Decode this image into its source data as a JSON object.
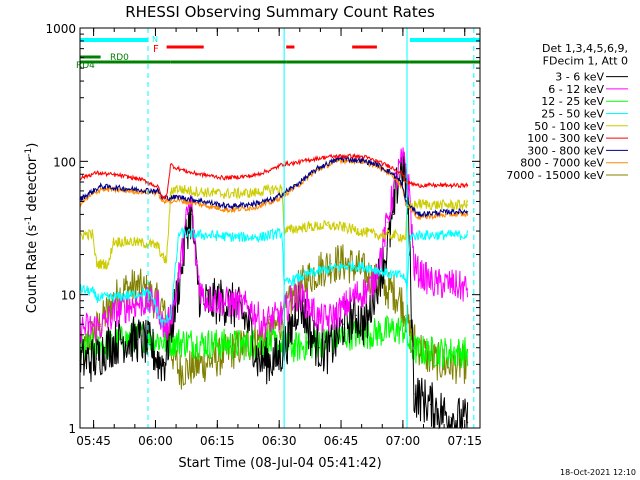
{
  "chart_data": {
    "type": "line",
    "title": "RHESSI Observing Summary Count Rates",
    "xlabel": "Start Time (08-Jul-04 05:41:42)",
    "ylabel_parts": [
      "Count Rate (s",
      "-1",
      " detector",
      "-1",
      ")"
    ],
    "x_unit": "minutes after 05:41:42",
    "xlim": [
      0,
      97
    ],
    "ylim": [
      1,
      1000
    ],
    "yscale": "log",
    "grid": false,
    "legend_position": "right",
    "x_ticks": [
      {
        "x": 3.3,
        "label": "05:45"
      },
      {
        "x": 18.3,
        "label": "06:00"
      },
      {
        "x": 33.3,
        "label": "06:15"
      },
      {
        "x": 48.3,
        "label": "06:30"
      },
      {
        "x": 63.3,
        "label": "06:45"
      },
      {
        "x": 78.3,
        "label": "07:00"
      },
      {
        "x": 93.3,
        "label": "07:15"
      }
    ],
    "y_ticks": [
      {
        "y": 1,
        "label": "1"
      },
      {
        "y": 10,
        "label": "10"
      },
      {
        "y": 100,
        "label": "100"
      },
      {
        "y": 1000,
        "label": "1000"
      }
    ],
    "legend_header": [
      "Det 1,3,4,5,6,9,",
      "FDecim 1, Att 0"
    ],
    "series": [
      {
        "name": "3 - 6 keV",
        "color": "#000000",
        "x": [
          0,
          4,
          6,
          10,
          14,
          17,
          19,
          20.5,
          21.5,
          23,
          24.5,
          26,
          27,
          28,
          29,
          30,
          34,
          38,
          41,
          43,
          44,
          46,
          48,
          51,
          53,
          54,
          56,
          58,
          60,
          62,
          64,
          67,
          69,
          70,
          71,
          73,
          74.5,
          76,
          77,
          78,
          79,
          79.5,
          80,
          81,
          85,
          88,
          90,
          94
        ],
        "y": [
          3.2,
          3.3,
          4.0,
          4.6,
          4.6,
          4.2,
          3.2,
          3.1,
          4.5,
          8,
          15,
          32,
          40,
          18,
          10,
          8.5,
          9,
          8,
          6,
          3.3,
          3.2,
          3.2,
          3.3,
          5,
          9,
          8,
          5,
          4,
          3.8,
          4.5,
          6,
          7,
          6,
          6.5,
          10,
          15,
          22,
          40,
          70,
          95,
          70,
          45,
          20,
          1.8,
          1.5,
          1.3,
          1.2,
          1.1
        ]
      },
      {
        "name": "6 - 12 keV",
        "color": "#ff00ff",
        "x": [
          0,
          5,
          9,
          13,
          16,
          19,
          20,
          21,
          23,
          24.5,
          26,
          27,
          28,
          29,
          30,
          34,
          38,
          41,
          43,
          44,
          46,
          49,
          51,
          53,
          56,
          58,
          60,
          62,
          64,
          67,
          69,
          71,
          73,
          74.5,
          76,
          77,
          78,
          79,
          80,
          81,
          83,
          86,
          90,
          94
        ],
        "y": [
          5.6,
          5.8,
          7.5,
          8.5,
          8.8,
          8.5,
          6,
          5.5,
          9,
          18,
          40,
          50,
          20,
          12,
          9.5,
          9,
          8.5,
          8,
          7,
          6,
          6.5,
          7,
          9,
          10,
          8,
          6.5,
          6.5,
          7,
          8,
          10,
          10.5,
          12,
          20,
          35,
          60,
          80,
          100,
          95,
          55,
          16,
          14,
          12,
          12,
          11
        ]
      },
      {
        "name": "12 - 25 keV",
        "color": "#00ff00",
        "x": [
          0,
          8,
          15,
          20,
          25,
          30,
          40,
          45,
          52,
          60,
          65,
          70,
          76,
          79,
          80,
          82,
          87,
          94
        ],
        "y": [
          3.9,
          4.3,
          4.9,
          4.5,
          4.4,
          4.3,
          4.2,
          4.4,
          4.0,
          4.5,
          5.0,
          5.1,
          5.4,
          5.5,
          4.0,
          3.8,
          3.7,
          3.7
        ]
      },
      {
        "name": "25 - 50 keV",
        "color": "#00ffff",
        "x": [
          0,
          3,
          4,
          8,
          13,
          16,
          18,
          19,
          20,
          22,
          24,
          30,
          38,
          44,
          46,
          49,
          49.5,
          52,
          56,
          62,
          66,
          70,
          73,
          76,
          78,
          79,
          79.3,
          80,
          82,
          87,
          94
        ],
        "y": [
          11,
          10.5,
          9.5,
          9.5,
          10,
          10.5,
          9,
          7,
          6,
          7,
          29,
          28,
          27,
          27,
          28,
          29,
          12,
          13,
          14.5,
          16,
          16.5,
          16,
          15,
          14,
          14,
          13,
          10,
          27,
          28,
          28,
          28
        ]
      },
      {
        "name": "50 - 100 keV",
        "color": "#cccc00",
        "x": [
          0,
          3,
          4,
          7,
          8,
          12,
          17,
          19,
          20,
          21,
          22,
          23,
          27,
          35,
          42,
          47,
          49,
          49.5,
          54,
          60,
          64,
          68,
          72,
          76,
          79,
          79.3,
          82,
          87,
          94
        ],
        "y": [
          28,
          28.5,
          17,
          17,
          25,
          25,
          24,
          23,
          19,
          18,
          58,
          63,
          60,
          57,
          58,
          62,
          62,
          30,
          32,
          33,
          32,
          30,
          28,
          28,
          27,
          45,
          48,
          47,
          47
        ]
      },
      {
        "name": "100 - 300 keV",
        "color": "#ff0000",
        "x": [
          0,
          3,
          4,
          10,
          15,
          19,
          20,
          21,
          22,
          23,
          27,
          35,
          42,
          47,
          49,
          52,
          56,
          60,
          65,
          69,
          72,
          75,
          78,
          79,
          82,
          86,
          94
        ],
        "y": [
          75,
          80,
          82,
          78,
          73,
          64,
          53,
          55,
          95,
          90,
          82,
          75,
          78,
          88,
          95,
          97,
          103,
          108,
          110,
          108,
          100,
          92,
          82,
          70,
          66,
          66,
          66
        ]
      },
      {
        "name": "300 - 800 keV",
        "color": "#000088",
        "x": [
          0,
          5,
          12,
          19,
          20,
          24,
          30,
          36,
          42,
          47,
          52,
          58,
          63,
          68,
          72,
          76,
          78,
          79,
          82,
          90,
          94
        ],
        "y": [
          52,
          65,
          62,
          60,
          53,
          54,
          50,
          46,
          48,
          52,
          65,
          90,
          105,
          102,
          95,
          80,
          68,
          50,
          40,
          42,
          42
        ]
      },
      {
        "name": "800 - 7000 keV",
        "color": "#ff8800",
        "x": [
          0,
          5,
          12,
          19,
          20,
          24,
          30,
          36,
          42,
          47,
          52,
          58,
          63,
          68,
          72,
          76,
          78,
          79,
          82,
          90,
          94
        ],
        "y": [
          48,
          62,
          60,
          58,
          50,
          51,
          47,
          43,
          45,
          50,
          63,
          88,
          102,
          100,
          92,
          78,
          65,
          48,
          38,
          40,
          40
        ]
      },
      {
        "name": "7000 - 15000 keV",
        "color": "#808000",
        "x": [
          0,
          2,
          5,
          8,
          11,
          14,
          17,
          19,
          20,
          22,
          24,
          28,
          32,
          36,
          40,
          43,
          46,
          49,
          52,
          55,
          58,
          61,
          63,
          65,
          68,
          71,
          74,
          76,
          78,
          79,
          80,
          84,
          88,
          94
        ],
        "y": [
          3,
          4.5,
          6,
          9,
          11,
          11.5,
          10,
          8.5,
          8.2,
          4,
          2.7,
          2.9,
          3.2,
          3.7,
          4.2,
          4.5,
          5.0,
          6.5,
          10,
          13,
          15.5,
          17,
          17.5,
          17,
          15.5,
          13,
          11,
          10.5,
          9,
          7,
          5,
          3.5,
          3,
          3
        ]
      }
    ],
    "annotations": {
      "legend_tags": [
        {
          "label": "N",
          "color": "#00ffff"
        },
        {
          "label": "F",
          "color": "#ff0000"
        },
        {
          "label": "RD0",
          "color": "#008000"
        },
        {
          "label": "RD4",
          "color": "#008000"
        }
      ],
      "footer": "18-Oct-2021 12:10"
    },
    "flag_bars": {
      "night": {
        "color": "#00ffff",
        "spans": [
          [
            0,
            16.5
          ],
          [
            80,
            97
          ]
        ]
      },
      "flare": {
        "color": "#ff0000",
        "spans": [
          [
            21,
            30
          ],
          [
            50,
            52
          ],
          [
            66,
            72
          ]
        ]
      },
      "rd0": {
        "color": "#008000",
        "spans": [
          [
            0,
            5
          ]
        ]
      },
      "rd4": {
        "color": "#008000",
        "spans": [
          [
            0,
            22
          ],
          [
            22,
            50
          ],
          [
            50,
            80
          ],
          [
            80,
            97
          ]
        ]
      }
    },
    "vlines": [
      {
        "x": 0,
        "color": "#00ffff",
        "dashed": false
      },
      {
        "x": 16.5,
        "color": "#00ffff",
        "dashed": true
      },
      {
        "x": 49.5,
        "color": "#00ffff",
        "dashed": false
      },
      {
        "x": 79.3,
        "color": "#00ffff",
        "dashed": false
      },
      {
        "x": 95.5,
        "color": "#00ffff",
        "dashed": true
      }
    ]
  }
}
